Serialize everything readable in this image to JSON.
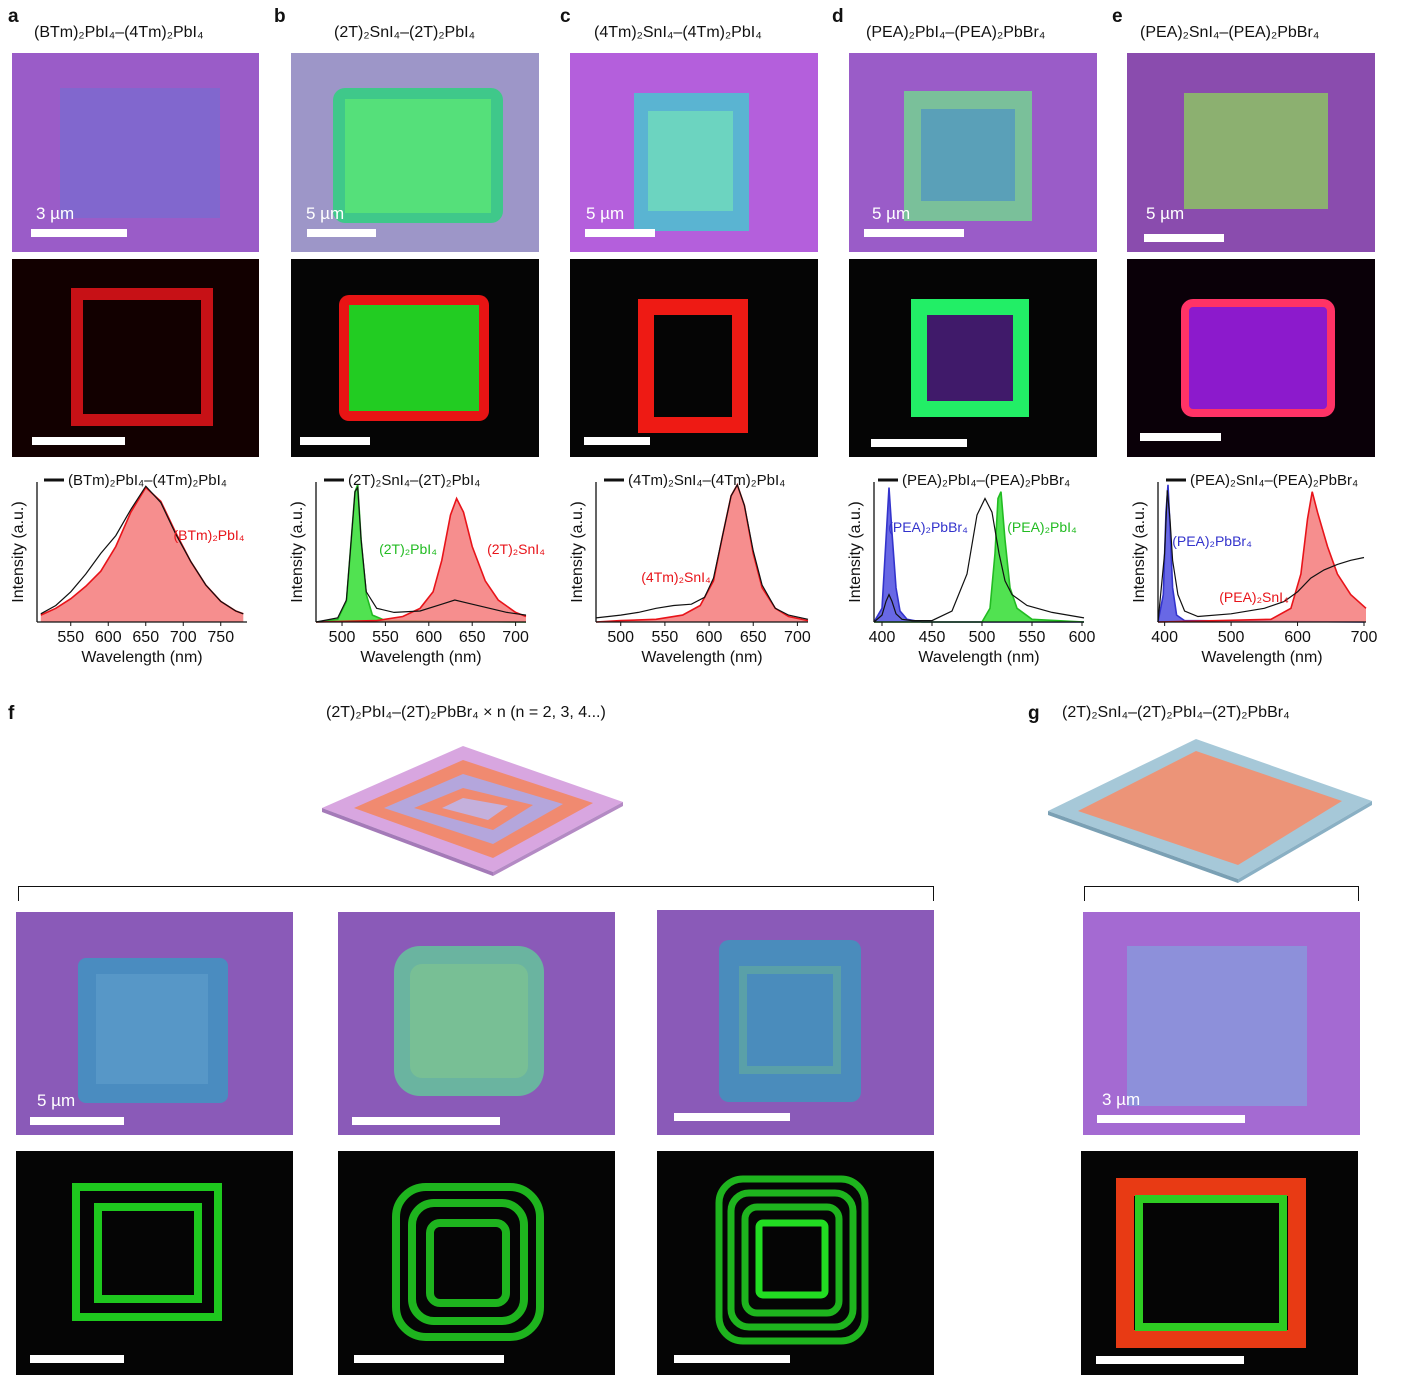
{
  "panels": [
    {
      "label": "a",
      "title": "(BTm)₂PbI₄–(4Tm)₂PbI₄",
      "scale": "3 µm"
    },
    {
      "label": "b",
      "title": "(2T)₂SnI₄–(2T)₂PbI₄",
      "scale": "5 µm"
    },
    {
      "label": "c",
      "title": "(4Tm)₂SnI₄–(4Tm)₂PbI₄",
      "scale": "5 µm"
    },
    {
      "label": "d",
      "title": "(PEA)₂PbI₄–(PEA)₂PbBr₄",
      "scale": "5 µm"
    },
    {
      "label": "e",
      "title": "(PEA)₂SnI₄–(PEA)₂PbBr₄",
      "scale": "5 µm"
    },
    {
      "label": "f",
      "title": "(2T)₂PbI₄–(2T)₂PbBr₄ × n (n = 2, 3, 4...)",
      "scale": "5 µm"
    },
    {
      "label": "g",
      "title": "(2T)₂SnI₄–(2T)₂PbI₄–(2T)₂PbBr₄",
      "scale": "3 µm"
    }
  ],
  "chart_data": [
    {
      "type": "line",
      "panel": "a",
      "xlabel": "Wavelength (nm)",
      "ylabel": "Intensity (a.u.)",
      "xlim": [
        505,
        785
      ],
      "xticks": [
        550,
        600,
        650,
        700,
        750
      ],
      "legend": "(BTm)₂PbI₄–(4Tm)₂PbI₄",
      "series": [
        {
          "name": "(BTm)₂PbI₄",
          "color": "#e8141a",
          "fill": "#f47a7a",
          "x": [
            510,
            530,
            550,
            570,
            590,
            610,
            630,
            650,
            670,
            690,
            710,
            730,
            750,
            770,
            780
          ],
          "y": [
            0.05,
            0.1,
            0.17,
            0.26,
            0.37,
            0.55,
            0.8,
            0.98,
            0.88,
            0.65,
            0.44,
            0.27,
            0.15,
            0.08,
            0.06
          ]
        },
        {
          "name": "data",
          "color": "#111111",
          "x": [
            510,
            530,
            550,
            570,
            590,
            610,
            630,
            650,
            670,
            690,
            710,
            730,
            750,
            770,
            780
          ],
          "y": [
            0.06,
            0.12,
            0.22,
            0.35,
            0.5,
            0.63,
            0.82,
            0.99,
            0.87,
            0.64,
            0.44,
            0.27,
            0.15,
            0.08,
            0.06
          ]
        }
      ]
    },
    {
      "type": "line",
      "panel": "b",
      "xlabel": "Wavelength (nm)",
      "ylabel": "Intensity (a.u.)",
      "xlim": [
        470,
        712
      ],
      "xticks": [
        500,
        550,
        600,
        650,
        700
      ],
      "legend": "(2T)₂SnI₄–(2T)₂PbI₄",
      "series": [
        {
          "name": "(2T)₂PbI₄",
          "color": "#22bb22",
          "fill": "#33dd33",
          "x": [
            470,
            495,
            505,
            510,
            515,
            518,
            522,
            528,
            535,
            550,
            712
          ],
          "y": [
            0.0,
            0.02,
            0.15,
            0.55,
            0.95,
            1.0,
            0.6,
            0.2,
            0.05,
            0.01,
            0.0
          ]
        },
        {
          "name": "(2T)₂SnI₄",
          "color": "#e8141a",
          "fill": "#f47a7a",
          "x": [
            470,
            540,
            570,
            590,
            605,
            615,
            625,
            632,
            640,
            650,
            665,
            680,
            700,
            712
          ],
          "y": [
            0.0,
            0.01,
            0.04,
            0.1,
            0.22,
            0.45,
            0.78,
            0.9,
            0.8,
            0.55,
            0.3,
            0.16,
            0.07,
            0.04
          ]
        },
        {
          "name": "data",
          "color": "#111111",
          "x": [
            470,
            495,
            505,
            510,
            515,
            518,
            522,
            528,
            540,
            560,
            590,
            615,
            630,
            650,
            670,
            690,
            712
          ],
          "y": [
            0.0,
            0.03,
            0.16,
            0.55,
            0.95,
            0.98,
            0.6,
            0.22,
            0.1,
            0.07,
            0.08,
            0.13,
            0.16,
            0.13,
            0.1,
            0.07,
            0.05
          ]
        }
      ],
      "annotations": [
        {
          "text": "(2T)₂PbI₄",
          "series": "(2T)₂PbI₄"
        },
        {
          "text": "(2T)₂SnI₄",
          "series": "(2T)₂SnI₄"
        }
      ]
    },
    {
      "type": "line",
      "panel": "c",
      "xlabel": "Wavelength (nm)",
      "ylabel": "Intensity (a.u.)",
      "xlim": [
        472,
        712
      ],
      "xticks": [
        500,
        550,
        600,
        650,
        700
      ],
      "legend": "(4Tm)₂SnI₄–(4Tm)₂PbI₄",
      "series": [
        {
          "name": "(4Tm)₂SnI₄",
          "color": "#e8141a",
          "fill": "#f47a7a",
          "x": [
            472,
            500,
            540,
            570,
            590,
            605,
            615,
            625,
            632,
            640,
            650,
            660,
            675,
            690,
            712
          ],
          "y": [
            0.0,
            0.01,
            0.02,
            0.05,
            0.12,
            0.3,
            0.62,
            0.92,
            1.0,
            0.85,
            0.5,
            0.25,
            0.1,
            0.04,
            0.01
          ]
        },
        {
          "name": "data",
          "color": "#111111",
          "x": [
            472,
            500,
            520,
            540,
            560,
            580,
            595,
            605,
            615,
            625,
            632,
            640,
            650,
            660,
            675,
            690,
            712
          ],
          "y": [
            0.03,
            0.05,
            0.07,
            0.1,
            0.12,
            0.13,
            0.18,
            0.32,
            0.62,
            0.92,
            1.0,
            0.85,
            0.52,
            0.27,
            0.1,
            0.05,
            0.02
          ]
        }
      ],
      "annotations": [
        {
          "text": "(4Tm)₂SnI₄",
          "series": "(4Tm)₂SnI₄"
        }
      ]
    },
    {
      "type": "line",
      "panel": "d",
      "xlabel": "Wavelength (nm)",
      "ylabel": "Intensity (a.u.)",
      "xlim": [
        392,
        602
      ],
      "xticks": [
        400,
        450,
        500,
        550,
        600
      ],
      "legend": "(PEA)₂PbI₄–(PEA)₂PbBr₄",
      "series": [
        {
          "name": "(PEA)₂PbBr₄",
          "color": "#3333cc",
          "fill": "#4d4de0",
          "x": [
            392,
            400,
            404,
            407,
            410,
            414,
            418,
            425,
            440,
            602
          ],
          "y": [
            0.0,
            0.1,
            0.6,
            0.98,
            0.65,
            0.25,
            0.08,
            0.02,
            0.0,
            0.0
          ]
        },
        {
          "name": "(PEA)₂PbI₄",
          "color": "#22bb22",
          "fill": "#33dd33",
          "x": [
            392,
            500,
            508,
            513,
            516,
            519,
            523,
            528,
            535,
            550,
            602
          ],
          "y": [
            0.0,
            0.0,
            0.1,
            0.5,
            0.9,
            0.95,
            0.6,
            0.25,
            0.1,
            0.02,
            0.0
          ]
        },
        {
          "name": "data",
          "color": "#111111",
          "x": [
            392,
            400,
            404,
            407,
            410,
            414,
            420,
            430,
            450,
            470,
            485,
            495,
            503,
            510,
            517,
            523,
            530,
            545,
            570,
            602
          ],
          "y": [
            0.0,
            0.05,
            0.15,
            0.2,
            0.15,
            0.06,
            0.02,
            0.01,
            0.01,
            0.08,
            0.35,
            0.78,
            0.9,
            0.8,
            0.5,
            0.3,
            0.2,
            0.12,
            0.07,
            0.03
          ]
        }
      ],
      "annotations": [
        {
          "text": "(PEA)₂PbBr₄",
          "series": "(PEA)₂PbBr₄"
        },
        {
          "text": "(PEA)₂PbI₄",
          "series": "(PEA)₂PbI₄"
        }
      ]
    },
    {
      "type": "line",
      "panel": "e",
      "xlabel": "Wavelength (nm)",
      "ylabel": "Intensity (a.u.)",
      "xlim": [
        390,
        703
      ],
      "xticks": [
        400,
        500,
        600,
        700
      ],
      "legend": "(PEA)₂SnI₄–(PEA)₂PbBr₄",
      "series": [
        {
          "name": "(PEA)₂PbBr₄",
          "color": "#3333cc",
          "fill": "#4d4de0",
          "x": [
            390,
            398,
            402,
            405,
            408,
            412,
            418,
            430,
            700
          ],
          "y": [
            0.0,
            0.2,
            0.8,
            1.0,
            0.7,
            0.25,
            0.05,
            0.01,
            0.0
          ]
        },
        {
          "name": "(PEA)₂SnI₄",
          "color": "#e8141a",
          "fill": "#f47a7a",
          "x": [
            390,
            560,
            590,
            605,
            615,
            622,
            630,
            645,
            660,
            680,
            703
          ],
          "y": [
            0.0,
            0.02,
            0.1,
            0.35,
            0.75,
            0.95,
            0.8,
            0.55,
            0.35,
            0.2,
            0.1
          ]
        },
        {
          "name": "data",
          "color": "#111111",
          "x": [
            390,
            400,
            404,
            408,
            412,
            420,
            430,
            450,
            500,
            550,
            580,
            600,
            620,
            640,
            660,
            680,
            700
          ],
          "y": [
            0.0,
            0.5,
            0.96,
            0.75,
            0.45,
            0.2,
            0.08,
            0.04,
            0.06,
            0.1,
            0.15,
            0.22,
            0.32,
            0.38,
            0.42,
            0.45,
            0.47
          ]
        }
      ],
      "annotations": [
        {
          "text": "(PEA)₂PbBr₄",
          "series": "(PEA)₂PbBr₄"
        },
        {
          "text": "(PEA)₂SnI₄",
          "series": "(PEA)₂SnI₄"
        }
      ]
    }
  ],
  "colors": {
    "substrate": "#9a5cc8",
    "red_pl": "#e8141a",
    "green_pl": "#33dd33",
    "blue_pl": "#4d4de0"
  }
}
